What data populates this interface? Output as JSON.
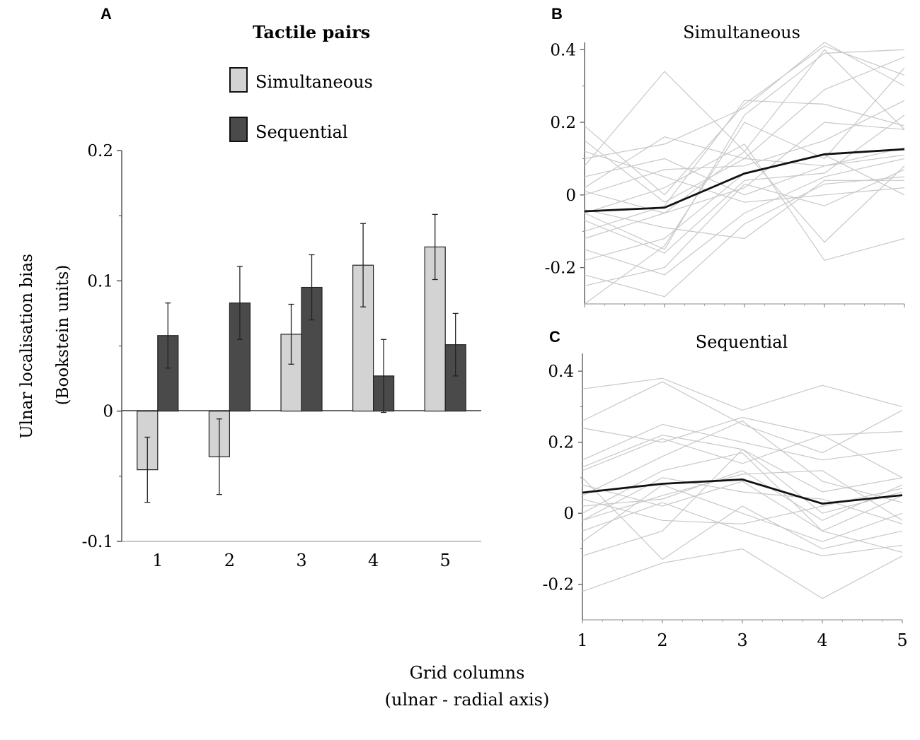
{
  "chart_data": [
    {
      "panel_label": "A",
      "type": "bar",
      "legend_title": "Tactile pairs",
      "categories": [
        "1",
        "2",
        "3",
        "4",
        "5"
      ],
      "series": [
        {
          "name": "Simultaneous",
          "color": "#d3d3d3",
          "values": [
            -0.045,
            -0.035,
            0.059,
            0.112,
            0.126
          ],
          "errors": [
            0.025,
            0.029,
            0.023,
            0.032,
            0.025
          ]
        },
        {
          "name": "Sequential",
          "color": "#4a4a4a",
          "values": [
            0.058,
            0.083,
            0.095,
            0.027,
            0.051
          ],
          "errors": [
            0.025,
            0.028,
            0.025,
            0.028,
            0.024
          ]
        }
      ],
      "ylim": [
        -0.1,
        0.2
      ],
      "yticks": [
        "0.2",
        "0.1",
        "0",
        "-0.1"
      ],
      "ytick_values": [
        0.2,
        0.1,
        0,
        -0.1
      ],
      "ylabel_line1": "Ulnar localisation bias",
      "ylabel_line2": "(Bookstein units)"
    },
    {
      "panel_label": "B",
      "type": "line",
      "title": "Simultaneous",
      "x": [
        1,
        2,
        3,
        4,
        5
      ],
      "ylim": [
        -0.3,
        0.42
      ],
      "ytick_values": [
        0.4,
        0.2,
        0,
        -0.2
      ],
      "yticks": [
        "0.4",
        "0.2",
        "0",
        "-0.2"
      ],
      "mean": [
        -0.045,
        -0.035,
        0.059,
        0.112,
        0.126
      ],
      "individuals": [
        [
          0.19,
          0.0,
          0.25,
          0.41,
          0.33
        ],
        [
          0.08,
          0.34,
          0.12,
          0.4,
          0.18
        ],
        [
          -0.05,
          -0.15,
          0.22,
          0.39,
          0.4
        ],
        [
          0.02,
          0.16,
          0.1,
          0.29,
          0.38
        ],
        [
          0.1,
          0.14,
          0.24,
          0.42,
          0.3
        ],
        [
          -0.1,
          -0.03,
          0.26,
          0.25,
          0.19
        ],
        [
          -0.3,
          -0.14,
          0.2,
          0.1,
          0.35
        ],
        [
          0.0,
          0.07,
          0.08,
          0.15,
          0.26
        ],
        [
          -0.07,
          -0.16,
          0.04,
          0.06,
          0.22
        ],
        [
          -0.12,
          -0.05,
          0.02,
          0.2,
          0.18
        ],
        [
          0.05,
          0.1,
          0.0,
          0.08,
          0.13
        ],
        [
          -0.15,
          -0.22,
          -0.05,
          0.05,
          0.1
        ],
        [
          -0.22,
          -0.28,
          -0.08,
          0.03,
          0.05
        ],
        [
          0.01,
          -0.05,
          0.12,
          -0.13,
          0.08
        ],
        [
          -0.05,
          0.02,
          0.14,
          -0.18,
          -0.12
        ],
        [
          0.12,
          0.05,
          -0.02,
          0.0,
          0.02
        ],
        [
          -0.18,
          -0.12,
          0.06,
          0.11,
          0.0
        ],
        [
          -0.25,
          -0.2,
          0.03,
          -0.03,
          0.07
        ],
        [
          0.15,
          -0.02,
          0.1,
          0.08,
          0.11
        ],
        [
          -0.04,
          -0.09,
          -0.12,
          0.04,
          0.04
        ]
      ]
    },
    {
      "panel_label": "C",
      "type": "line",
      "title": "Sequential",
      "x": [
        1,
        2,
        3,
        4,
        5
      ],
      "xticks": [
        "1",
        "2",
        "3",
        "4",
        "5"
      ],
      "ylim": [
        -0.3,
        0.45
      ],
      "ytick_values": [
        0.4,
        0.2,
        0,
        -0.2
      ],
      "yticks": [
        "0.4",
        "0.2",
        "0",
        "-0.2"
      ],
      "mean": [
        0.058,
        0.083,
        0.095,
        0.027,
        0.051
      ],
      "individuals": [
        [
          0.35,
          0.38,
          0.29,
          0.36,
          0.3
        ],
        [
          0.26,
          0.37,
          0.25,
          0.17,
          0.29
        ],
        [
          0.24,
          0.2,
          0.27,
          0.22,
          0.23
        ],
        [
          0.15,
          0.25,
          0.2,
          0.15,
          0.18
        ],
        [
          0.12,
          0.21,
          0.14,
          0.22,
          0.1
        ],
        [
          0.05,
          0.16,
          0.26,
          0.09,
          0.03
        ],
        [
          0.02,
          0.04,
          0.12,
          -0.02,
          0.08
        ],
        [
          -0.02,
          0.1,
          0.06,
          0.04,
          -0.03
        ],
        [
          -0.08,
          0.08,
          0.0,
          -0.08,
          0.0
        ],
        [
          -0.22,
          -0.14,
          -0.1,
          -0.24,
          -0.12
        ],
        [
          0.1,
          -0.13,
          0.02,
          -0.1,
          -0.05
        ],
        [
          -0.05,
          0.03,
          -0.05,
          -0.12,
          -0.09
        ],
        [
          0.08,
          0.02,
          0.09,
          -0.05,
          0.05
        ],
        [
          -0.12,
          -0.05,
          0.18,
          0.0,
          0.06
        ],
        [
          0.0,
          0.12,
          0.17,
          -0.05,
          -0.11
        ],
        [
          0.13,
          0.22,
          0.18,
          0.06,
          0.1
        ],
        [
          -0.02,
          0.05,
          0.11,
          0.12,
          -0.02
        ],
        [
          0.04,
          -0.02,
          -0.03,
          0.02,
          0.07
        ]
      ]
    }
  ],
  "shared_xlabel_line1": "Grid columns",
  "shared_xlabel_line2": "(ulnar - radial axis)",
  "colors": {
    "individual": "#c8c8c8",
    "mean": "#111111",
    "axis": "#555555"
  }
}
